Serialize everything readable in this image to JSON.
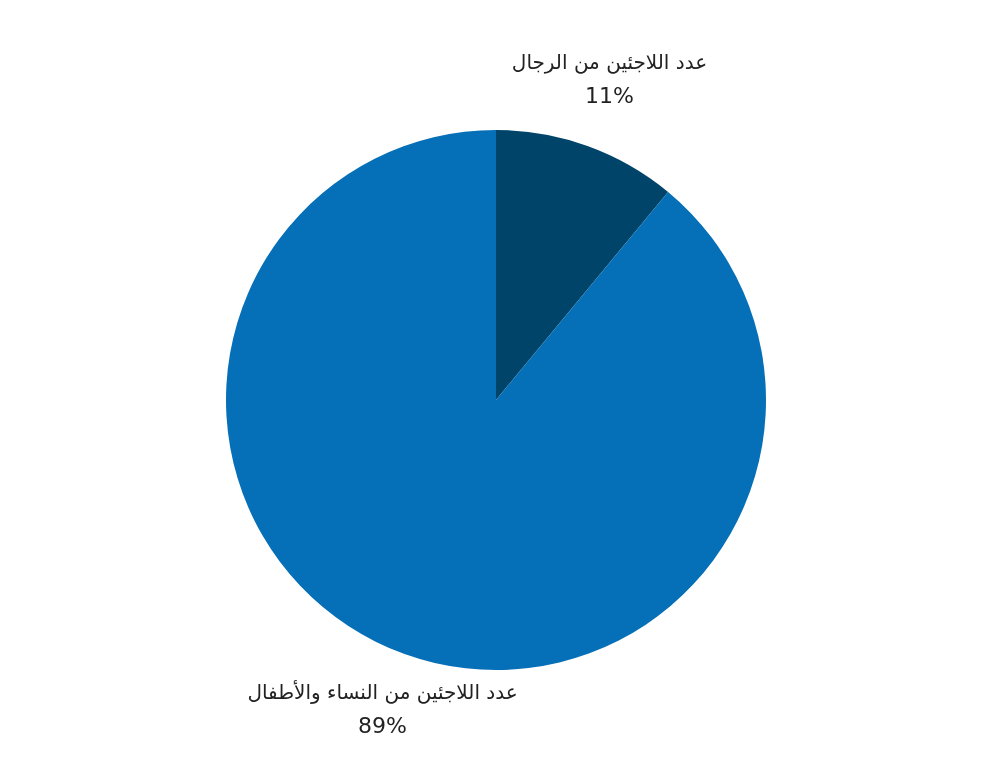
{
  "chart_data": {
    "type": "pie",
    "categories": [
      "عدد اللاجئين من الرجال",
      "عدد اللاجئين من النساء والأطفال"
    ],
    "values": [
      11,
      89
    ],
    "colors": [
      "#00446a",
      "#0570b7"
    ],
    "value_labels": [
      "11%",
      "89%"
    ],
    "legend": false
  }
}
